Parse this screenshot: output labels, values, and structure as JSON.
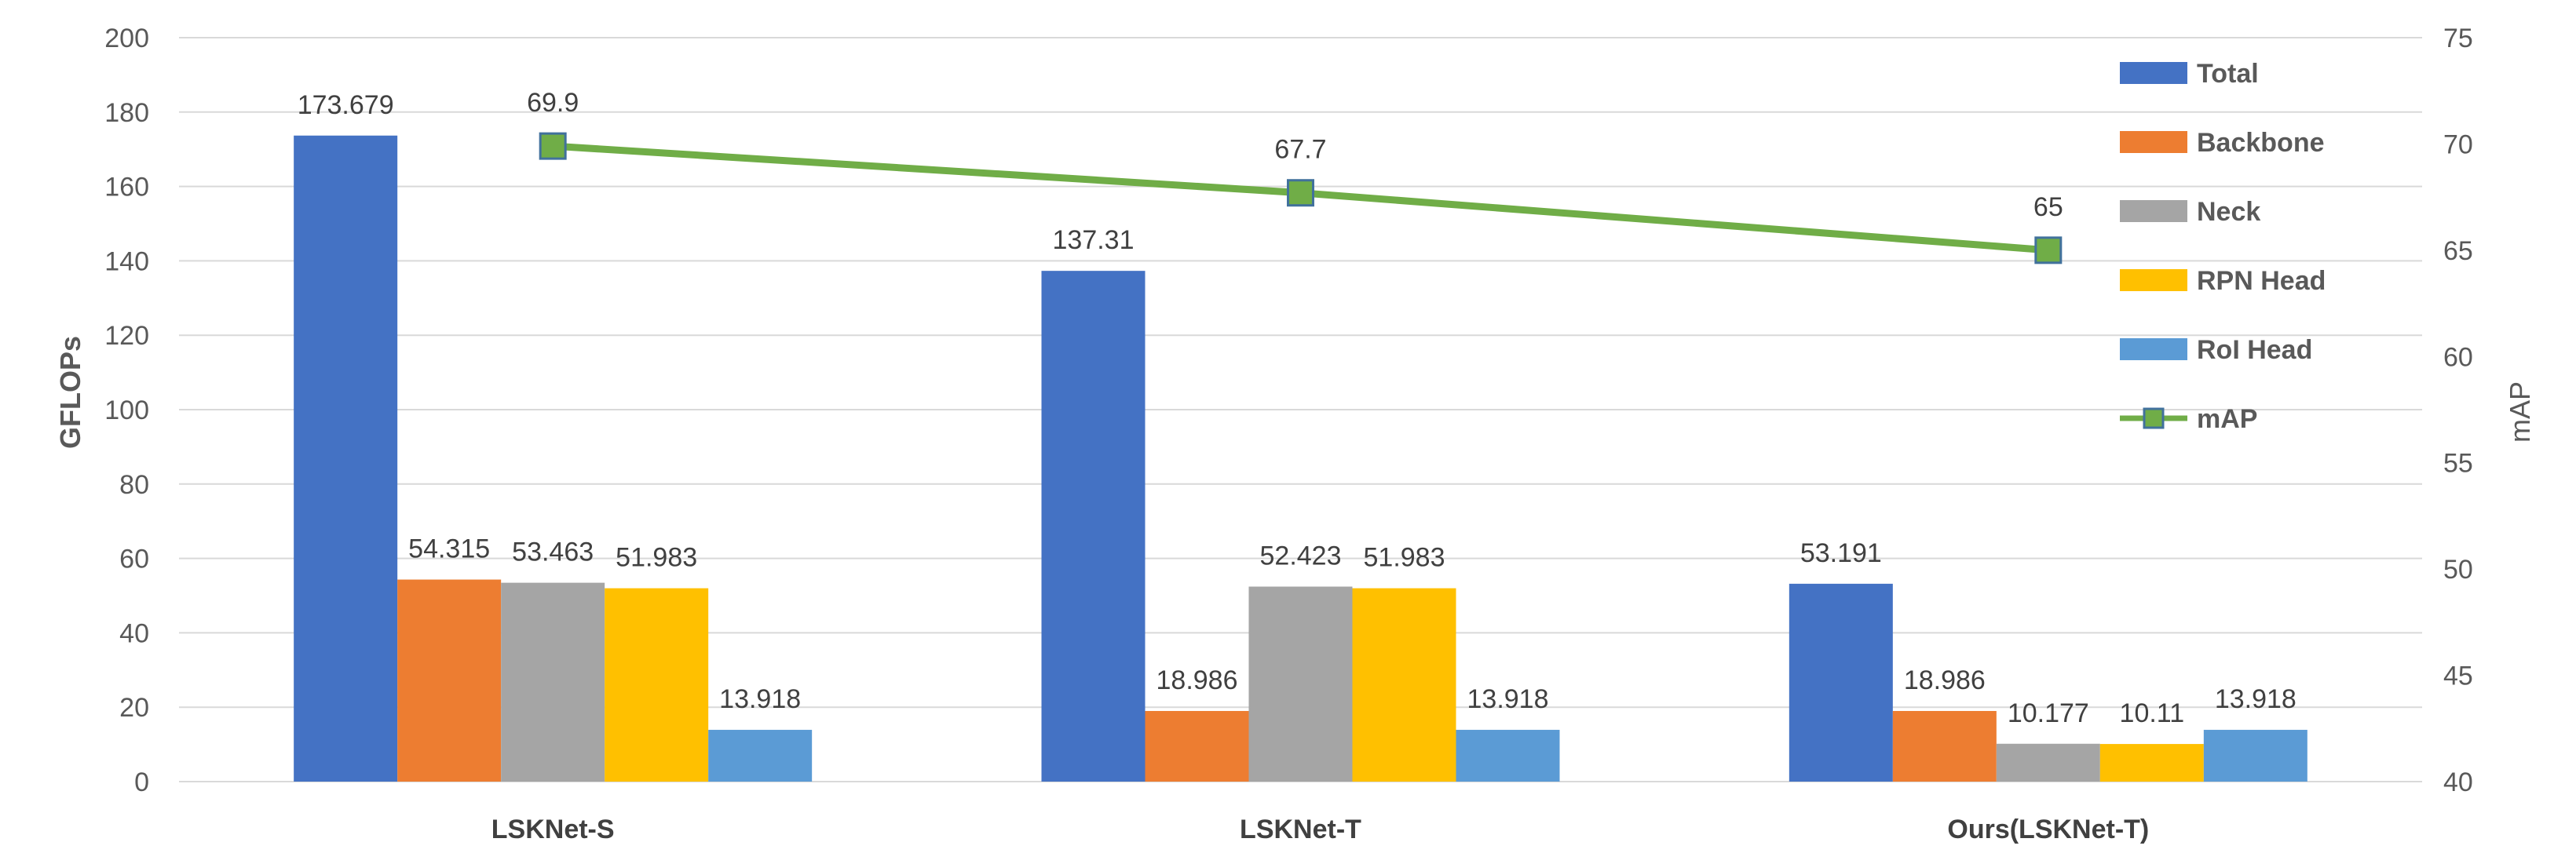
{
  "chart_data": {
    "type": "bar",
    "categories": [
      "LSKNet-S",
      "LSKNet-T",
      "Ours(LSKNet-T)"
    ],
    "series": [
      {
        "name": "Total",
        "values": [
          173.679,
          137.31,
          53.191
        ],
        "color": "#4472C4"
      },
      {
        "name": "Backbone",
        "values": [
          54.315,
          18.986,
          18.986
        ],
        "color": "#ED7D31"
      },
      {
        "name": "Neck",
        "values": [
          53.463,
          52.423,
          10.177
        ],
        "color": "#A5A5A5"
      },
      {
        "name": "RPN Head",
        "values": [
          51.983,
          51.983,
          10.11
        ],
        "color": "#FFC000"
      },
      {
        "name": "RoI Head",
        "values": [
          13.918,
          13.918,
          13.918
        ],
        "color": "#5B9BD5"
      }
    ],
    "line_series": {
      "name": "mAP",
      "values": [
        69.9,
        67.7,
        65
      ],
      "color": "#70AD47",
      "axis": "right"
    },
    "ylabel": "GFLOPs",
    "y2label": "mAP",
    "ylim": [
      0,
      200
    ],
    "y_ticks": [
      0,
      20,
      40,
      60,
      80,
      100,
      120,
      140,
      160,
      180,
      200
    ],
    "y2lim": [
      40,
      75
    ],
    "y2_ticks": [
      40,
      45,
      50,
      55,
      60,
      65,
      70,
      75
    ],
    "grid": true,
    "legend_position": "top-right"
  }
}
